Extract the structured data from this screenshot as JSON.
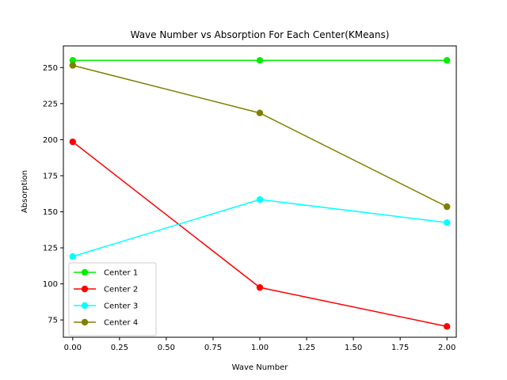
{
  "chart_data": {
    "type": "line",
    "title": "Wave Number vs Absorption For Each Center(KMeans)",
    "xlabel": "Wave Number",
    "ylabel": "Absorption",
    "x": [
      0,
      1,
      2
    ],
    "xlim": [
      -0.05,
      2.05
    ],
    "ylim": [
      63,
      265
    ],
    "xticks": [
      0.0,
      0.25,
      0.5,
      0.75,
      1.0,
      1.25,
      1.5,
      1.75,
      2.0
    ],
    "xtick_labels": [
      "0.00",
      "0.25",
      "0.50",
      "0.75",
      "1.00",
      "1.25",
      "1.50",
      "1.75",
      "2.00"
    ],
    "yticks": [
      75,
      100,
      125,
      150,
      175,
      200,
      225,
      250
    ],
    "ytick_labels": [
      "75",
      "100",
      "125",
      "150",
      "175",
      "200",
      "225",
      "250"
    ],
    "grid": false,
    "legend_position": "lower-left",
    "series": [
      {
        "name": "Center 1",
        "color": "#00ee00",
        "values": [
          255,
          255,
          255
        ]
      },
      {
        "name": "Center 2",
        "color": "#ff0000",
        "values": [
          198.5,
          97.5,
          70.5
        ]
      },
      {
        "name": "Center 3",
        "color": "#00ffff",
        "values": [
          119,
          158.5,
          142.5
        ]
      },
      {
        "name": "Center 4",
        "color": "#808000",
        "values": [
          251.5,
          218.5,
          153.5
        ]
      }
    ]
  }
}
